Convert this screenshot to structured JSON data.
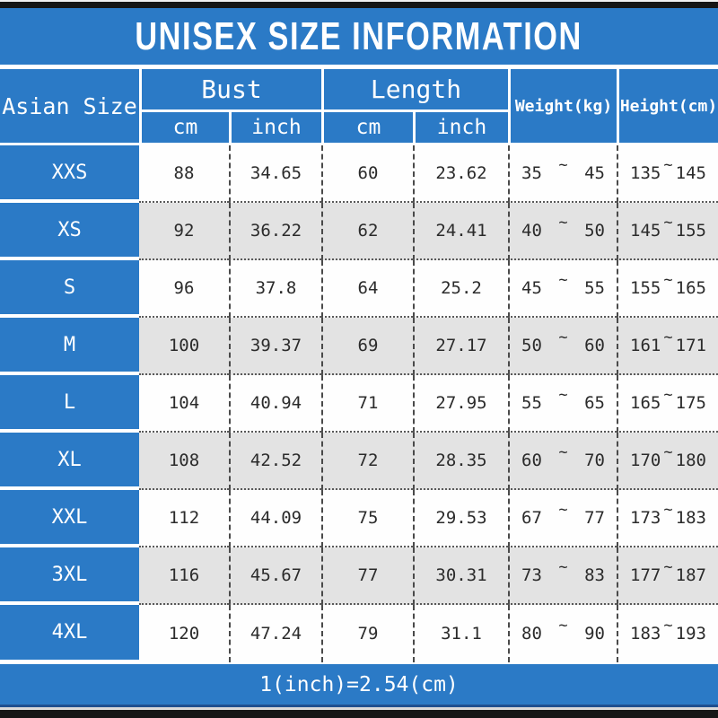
{
  "title": "UNISEX SIZE INFORMATION",
  "footer_note": "1(inch)=2.54(cm)",
  "colors": {
    "primary_blue": "#2b7ac6",
    "row_alt_gray": "#e3e3e3",
    "bar_black": "#161616",
    "data_text": "#2b2b2b"
  },
  "table": {
    "range_separator": "~",
    "headers": {
      "size": "Asian Size",
      "bust": "Bust",
      "length": "Length",
      "weight": "Weight(kg)",
      "height": "Height(cm)",
      "unit_cm": "cm",
      "unit_inch": "inch"
    },
    "rows": [
      {
        "size": "XXS",
        "bust_cm": "88",
        "bust_inch": "34.65",
        "length_cm": "60",
        "length_inch": "23.62",
        "weight_low": "35",
        "weight_high": "45",
        "height_low": "135",
        "height_high": "145"
      },
      {
        "size": "XS",
        "bust_cm": "92",
        "bust_inch": "36.22",
        "length_cm": "62",
        "length_inch": "24.41",
        "weight_low": "40",
        "weight_high": "50",
        "height_low": "145",
        "height_high": "155"
      },
      {
        "size": "S",
        "bust_cm": "96",
        "bust_inch": "37.8",
        "length_cm": "64",
        "length_inch": "25.2",
        "weight_low": "45",
        "weight_high": "55",
        "height_low": "155",
        "height_high": "165"
      },
      {
        "size": "M",
        "bust_cm": "100",
        "bust_inch": "39.37",
        "length_cm": "69",
        "length_inch": "27.17",
        "weight_low": "50",
        "weight_high": "60",
        "height_low": "161",
        "height_high": "171"
      },
      {
        "size": "L",
        "bust_cm": "104",
        "bust_inch": "40.94",
        "length_cm": "71",
        "length_inch": "27.95",
        "weight_low": "55",
        "weight_high": "65",
        "height_low": "165",
        "height_high": "175"
      },
      {
        "size": "XL",
        "bust_cm": "108",
        "bust_inch": "42.52",
        "length_cm": "72",
        "length_inch": "28.35",
        "weight_low": "60",
        "weight_high": "70",
        "height_low": "170",
        "height_high": "180"
      },
      {
        "size": "XXL",
        "bust_cm": "112",
        "bust_inch": "44.09",
        "length_cm": "75",
        "length_inch": "29.53",
        "weight_low": "67",
        "weight_high": "77",
        "height_low": "173",
        "height_high": "183"
      },
      {
        "size": "3XL",
        "bust_cm": "116",
        "bust_inch": "45.67",
        "length_cm": "77",
        "length_inch": "30.31",
        "weight_low": "73",
        "weight_high": "83",
        "height_low": "177",
        "height_high": "187"
      },
      {
        "size": "4XL",
        "bust_cm": "120",
        "bust_inch": "47.24",
        "length_cm": "79",
        "length_inch": "31.1",
        "weight_low": "80",
        "weight_high": "90",
        "height_low": "183",
        "height_high": "193"
      }
    ]
  }
}
